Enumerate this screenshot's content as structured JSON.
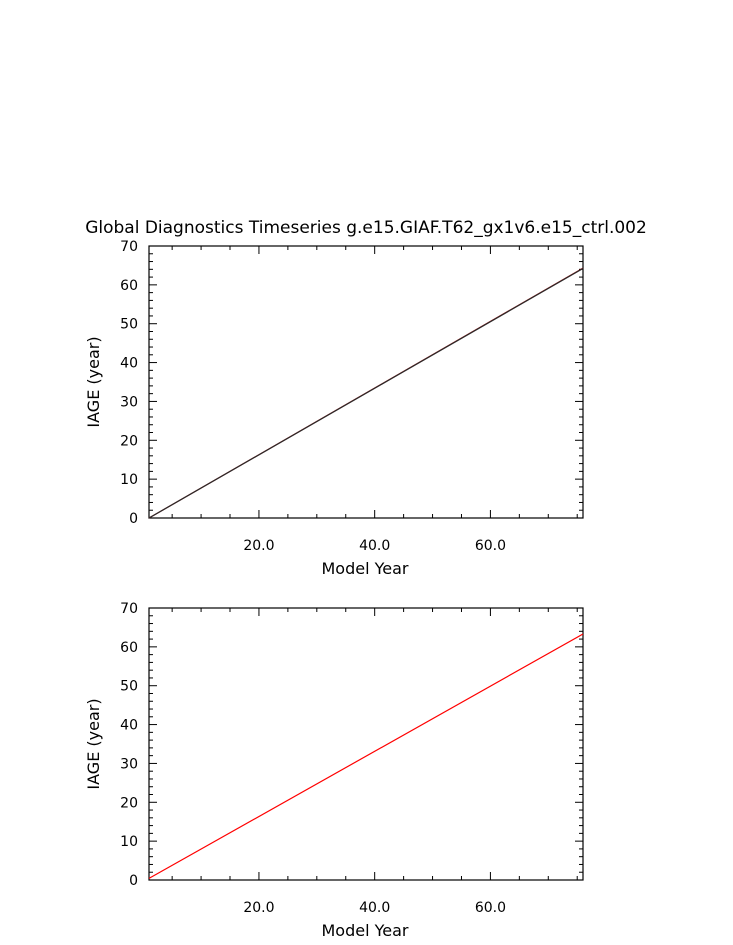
{
  "title": "Global Diagnostics Timeseries g.e15.GIAF.T62_gx1v6.e15_ctrl.002",
  "chart_data": [
    {
      "type": "line",
      "xlabel": "Model Year",
      "ylabel": "IAGE (year)",
      "xlim": [
        1,
        76
      ],
      "ylim": [
        0,
        70
      ],
      "x_ticks": [
        20,
        40,
        60
      ],
      "x_tick_labels": [
        "20.0",
        "40.0",
        "60.0"
      ],
      "y_ticks": [
        0,
        10,
        20,
        30,
        40,
        50,
        60,
        70
      ],
      "y_tick_labels": [
        "0",
        "10",
        "20",
        "30",
        "40",
        "50",
        "60",
        "70"
      ],
      "grid": false,
      "series": [
        {
          "color": "#8b0000",
          "x": [
            1,
            76
          ],
          "y": [
            0,
            64.3
          ]
        },
        {
          "color": "#2b2b2b",
          "x": [
            1,
            76
          ],
          "y": [
            0,
            64.2
          ]
        }
      ]
    },
    {
      "type": "line",
      "xlabel": "Model Year",
      "ylabel": "IAGE (year)",
      "xlim": [
        1,
        76
      ],
      "ylim": [
        0,
        70
      ],
      "x_ticks": [
        20,
        40,
        60
      ],
      "x_tick_labels": [
        "20.0",
        "40.0",
        "60.0"
      ],
      "y_ticks": [
        0,
        10,
        20,
        30,
        40,
        50,
        60,
        70
      ],
      "y_tick_labels": [
        "0",
        "10",
        "20",
        "30",
        "40",
        "50",
        "60",
        "70"
      ],
      "grid": false,
      "series": [
        {
          "color": "#ff0000",
          "x": [
            1,
            76
          ],
          "y": [
            0.4,
            63.3
          ]
        }
      ]
    }
  ]
}
